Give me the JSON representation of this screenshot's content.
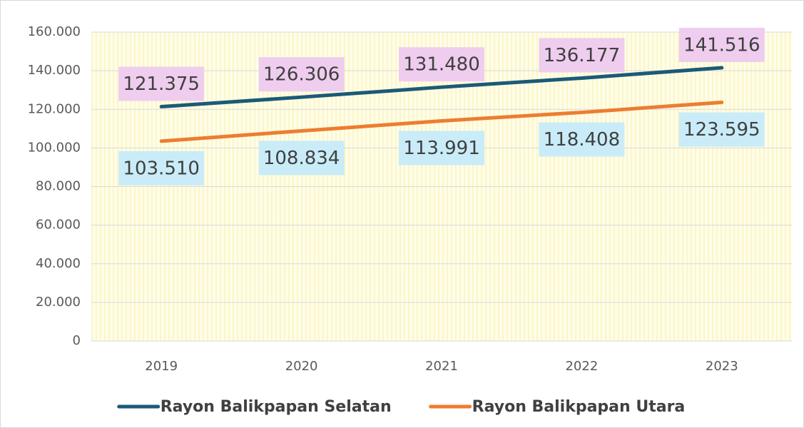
{
  "chart_data": {
    "type": "line",
    "categories": [
      "2019",
      "2020",
      "2021",
      "2022",
      "2023"
    ],
    "series": [
      {
        "name": "Rayon Balikpapan Selatan",
        "color": "#1b5a78",
        "label_color": "#efcdef",
        "label_position": "above",
        "values": [
          121375,
          126306,
          131480,
          136177,
          141516
        ],
        "value_labels": [
          "121.375",
          "126.306",
          "131.480",
          "136.177",
          "141.516"
        ]
      },
      {
        "name": "Rayon Balikpapan Utara",
        "color": "#ed7d31",
        "label_color": "#c9ecf8",
        "label_position": "below",
        "values": [
          103510,
          108834,
          113991,
          118408,
          123595
        ],
        "value_labels": [
          "103.510",
          "108.834",
          "113.991",
          "118.408",
          "123.595"
        ]
      }
    ],
    "ylim": [
      0,
      160000
    ],
    "yticks": [
      0,
      {
        "value": 20000,
        "label": "20.000"
      },
      {
        "value": 40000,
        "label": "40.000"
      },
      {
        "value": 60000,
        "label": "60.000"
      },
      {
        "value": 80000,
        "label": "80.000"
      },
      {
        "value": 100000,
        "label": "100.000"
      },
      {
        "value": 120000,
        "label": "120.000"
      },
      {
        "value": 140000,
        "label": "140.000"
      },
      {
        "value": 160000,
        "label": "160.000"
      }
    ],
    "grid": true,
    "legend": "bottom"
  }
}
